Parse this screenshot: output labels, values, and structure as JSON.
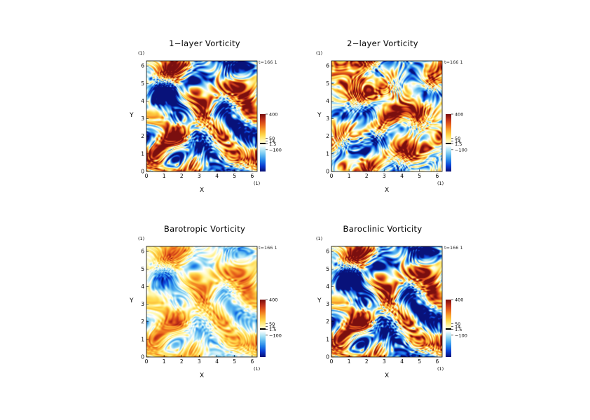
{
  "chart_data": [
    {
      "type": "heatmap",
      "title": "1−layer Vorticity",
      "xlabel": "X",
      "ylabel": "Y",
      "x_unit": "(1)",
      "y_unit": "(1)",
      "time_label": "t=166 1",
      "xlim": [
        0,
        6.283
      ],
      "ylim": [
        0,
        6.283
      ],
      "x_ticks": [
        "0",
        "1",
        "2",
        "3",
        "4",
        "5",
        "6"
      ],
      "y_ticks": [
        "0",
        "1",
        "2",
        "3",
        "4",
        "5",
        "6"
      ],
      "colorbar": {
        "ticks": [
          "400",
          "50",
          "14",
          "1.5",
          "−100"
        ],
        "values": [
          400,
          50,
          14,
          1.5,
          -100
        ]
      },
      "seed": 11,
      "bias": 0.0,
      "amp": 1.0
    },
    {
      "type": "heatmap",
      "title": "2−layer Vorticity",
      "xlabel": "X",
      "ylabel": "Y",
      "x_unit": "(1)",
      "y_unit": "(1)",
      "time_label": "t=166 1",
      "xlim": [
        0,
        6.283
      ],
      "ylim": [
        0,
        6.283
      ],
      "x_ticks": [
        "0",
        "1",
        "2",
        "3",
        "4",
        "5",
        "6"
      ],
      "y_ticks": [
        "0",
        "1",
        "2",
        "3",
        "4",
        "5",
        "6"
      ],
      "colorbar": {
        "ticks": [
          "400",
          "50",
          "14",
          "1.5",
          "−100"
        ],
        "values": [
          400,
          50,
          14,
          1.5,
          -100
        ]
      },
      "seed": 29,
      "bias": 0.05,
      "amp": 1.0
    },
    {
      "type": "heatmap",
      "title": "Barotropic Vorticity",
      "xlabel": "X",
      "ylabel": "Y",
      "x_unit": "(1)",
      "y_unit": "(1)",
      "time_label": "t=166 1",
      "xlim": [
        0,
        6.283
      ],
      "ylim": [
        0,
        6.283
      ],
      "x_ticks": [
        "0",
        "1",
        "2",
        "3",
        "4",
        "5",
        "6"
      ],
      "y_ticks": [
        "0",
        "1",
        "2",
        "3",
        "4",
        "5",
        "6"
      ],
      "colorbar": {
        "ticks": [
          "400",
          "50",
          "14",
          "1.5",
          "−100"
        ],
        "values": [
          400,
          50,
          14,
          1.5,
          -100
        ]
      },
      "seed": 11,
      "bias": 0.05,
      "amp": 0.45
    },
    {
      "type": "heatmap",
      "title": "Baroclinic Vorticity",
      "xlabel": "X",
      "ylabel": "Y",
      "x_unit": "(1)",
      "y_unit": "(1)",
      "time_label": "t=166 1",
      "xlim": [
        0,
        6.283
      ],
      "ylim": [
        0,
        6.283
      ],
      "x_ticks": [
        "0",
        "1",
        "2",
        "3",
        "4",
        "5",
        "6"
      ],
      "y_ticks": [
        "0",
        "1",
        "2",
        "3",
        "4",
        "5",
        "6"
      ],
      "colorbar": {
        "ticks": [
          "400",
          "50",
          "14",
          "1.5",
          "−100"
        ],
        "values": [
          400,
          50,
          14,
          1.5,
          -100
        ]
      },
      "seed": 11,
      "bias": -0.02,
      "amp": 1.0
    }
  ],
  "colormap": [
    "#08127a",
    "#0b3bd0",
    "#1f7fe8",
    "#5bb6f0",
    "#a9e3f5",
    "#ffffff",
    "#fff7a8",
    "#ffd84a",
    "#f9a22d",
    "#e8621b",
    "#c0301a",
    "#7a0f0f"
  ]
}
